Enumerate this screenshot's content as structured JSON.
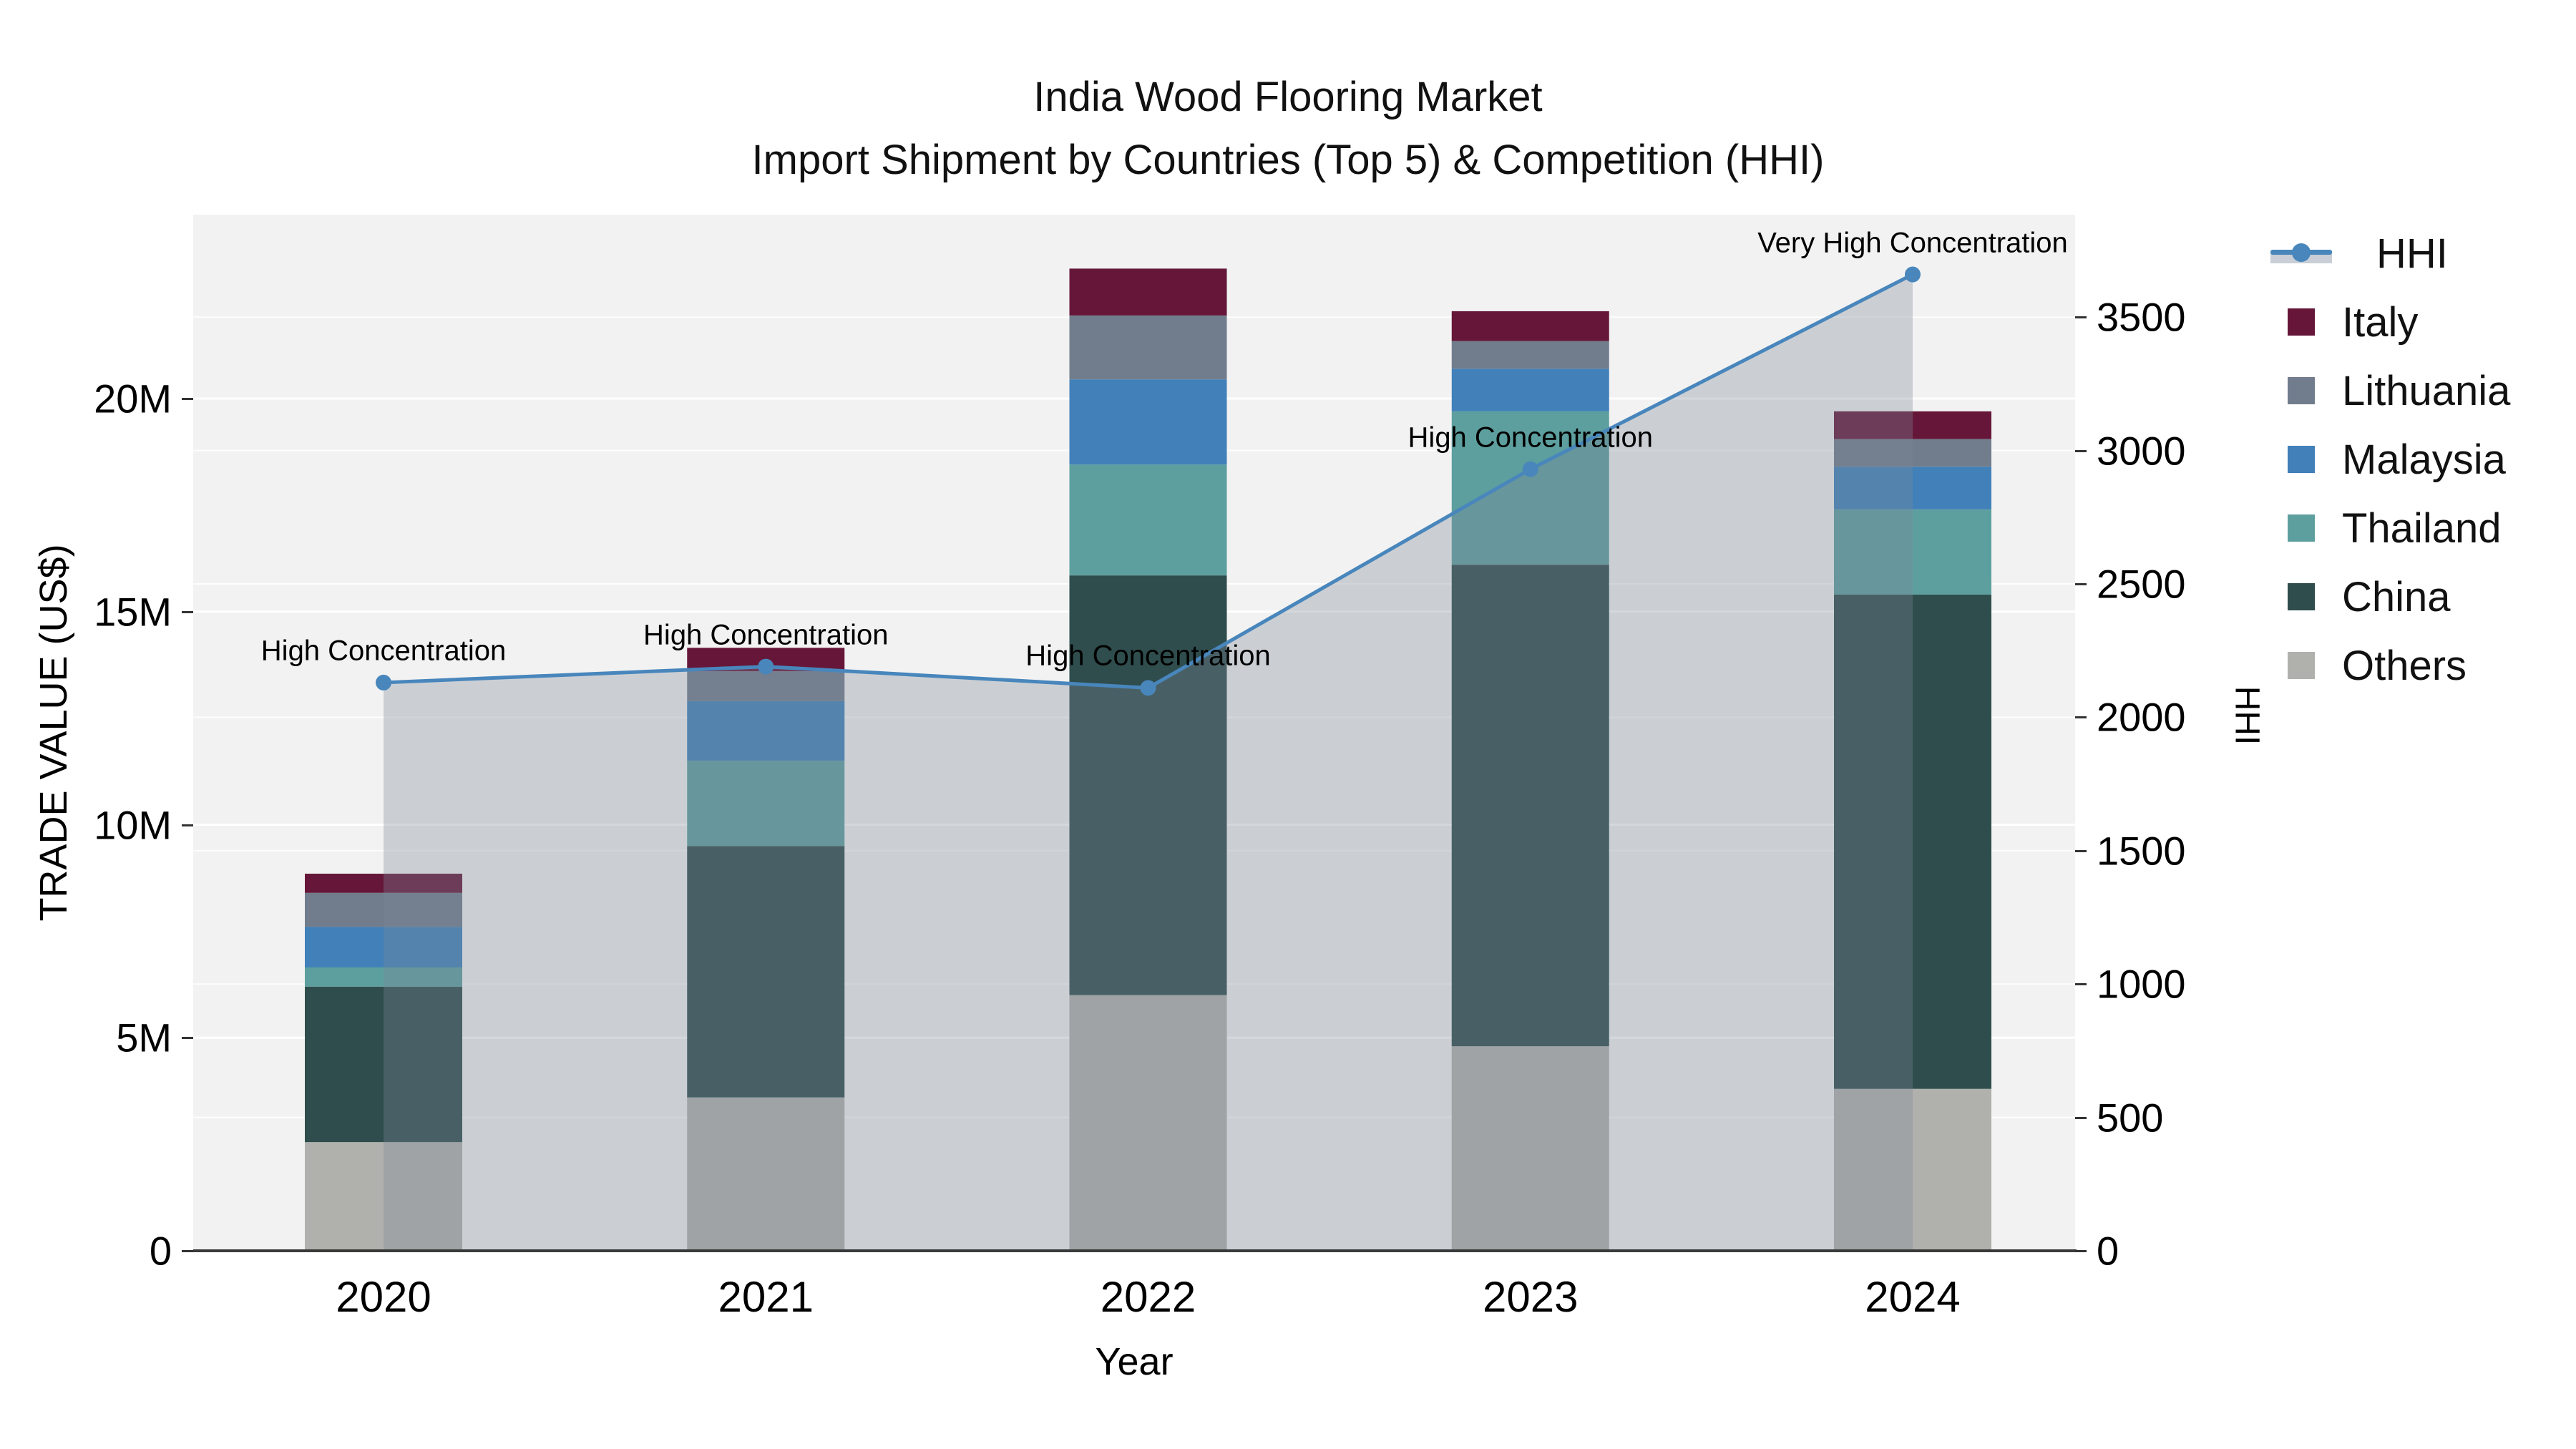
{
  "title": {
    "line1": "India Wood Flooring Market",
    "line2": "Import Shipment by Countries (Top 5) & Competition (HHI)"
  },
  "axes": {
    "x_title": "Year",
    "y_left_title": "TRADE VALUE (US$)",
    "y_right_title": "HHI",
    "y_left_ticks": [
      "0",
      "5M",
      "10M",
      "15M",
      "20M"
    ],
    "y_left_tick_values_m": [
      0,
      5,
      10,
      15,
      20
    ],
    "y_right_ticks": [
      "0",
      "500",
      "1000",
      "1500",
      "2000",
      "2500",
      "3000",
      "3500"
    ],
    "y_right_tick_values": [
      0,
      500,
      1000,
      1500,
      2000,
      2500,
      3000,
      3500
    ]
  },
  "chart_data": {
    "type": "bar",
    "subtype": "stacked-bars-with-line-dual-axis",
    "categories": [
      "2020",
      "2021",
      "2022",
      "2023",
      "2024"
    ],
    "xlabel": "Year",
    "ylabel_left": "TRADE VALUE (US$)",
    "ylabel_right": "HHI",
    "ylim_left_millions": [
      0,
      24.3
    ],
    "ylim_right": [
      0,
      3885
    ],
    "series": [
      {
        "name": "Others",
        "color": "#b0b1ad",
        "values_millions": [
          2.55,
          3.6,
          6.0,
          4.8,
          3.8
        ]
      },
      {
        "name": "China",
        "color": "#2f4d4d",
        "values_millions": [
          3.65,
          5.9,
          9.85,
          11.3,
          11.6
        ]
      },
      {
        "name": "Thailand",
        "color": "#5d9f9e",
        "values_millions": [
          0.45,
          2.0,
          2.6,
          3.6,
          2.0
        ]
      },
      {
        "name": "Malaysia",
        "color": "#4180b9",
        "values_millions": [
          0.95,
          1.4,
          2.0,
          1.0,
          1.0
        ]
      },
      {
        "name": "Lithuania",
        "color": "#717d8d",
        "values_millions": [
          0.8,
          0.7,
          1.5,
          0.65,
          0.65
        ]
      },
      {
        "name": "Italy",
        "color": "#661739",
        "values_millions": [
          0.45,
          0.55,
          1.1,
          0.7,
          0.65
        ]
      }
    ],
    "bar_totals_millions": [
      8.85,
      14.15,
      23.05,
      22.05,
      19.7
    ],
    "hhi_line": {
      "name": "HHI",
      "values": [
        2130,
        2190,
        2110,
        2930,
        3660
      ],
      "line_color": "#4886bc",
      "marker_color": "#4886bc",
      "area_overlay_color": "rgba(125,136,153,0.33)",
      "area_span": "from 2020 center to 2024 center, overlaid on bars"
    },
    "annotations": [
      {
        "category": "2020",
        "text": "High Concentration"
      },
      {
        "category": "2021",
        "text": "High Concentration"
      },
      {
        "category": "2022",
        "text": "High Concentration"
      },
      {
        "category": "2023",
        "text": "High Concentration"
      },
      {
        "category": "2024",
        "text": "Very High Concentration"
      }
    ],
    "grid": "on",
    "plot_background": "#f2f2f2",
    "gridline_color": "#ffffff",
    "legend_position": "outside-top-right"
  },
  "legend": {
    "items": [
      {
        "label": "HHI",
        "type": "line",
        "color": "#4886bc"
      },
      {
        "label": "Italy",
        "type": "swatch",
        "color": "#661739"
      },
      {
        "label": "Lithuania",
        "type": "swatch",
        "color": "#717d8d"
      },
      {
        "label": "Malaysia",
        "type": "swatch",
        "color": "#4180b9"
      },
      {
        "label": "Thailand",
        "type": "swatch",
        "color": "#5d9f9e"
      },
      {
        "label": "China",
        "type": "swatch",
        "color": "#2f4d4d"
      },
      {
        "label": "Others",
        "type": "swatch",
        "color": "#b0b1ad"
      }
    ]
  }
}
